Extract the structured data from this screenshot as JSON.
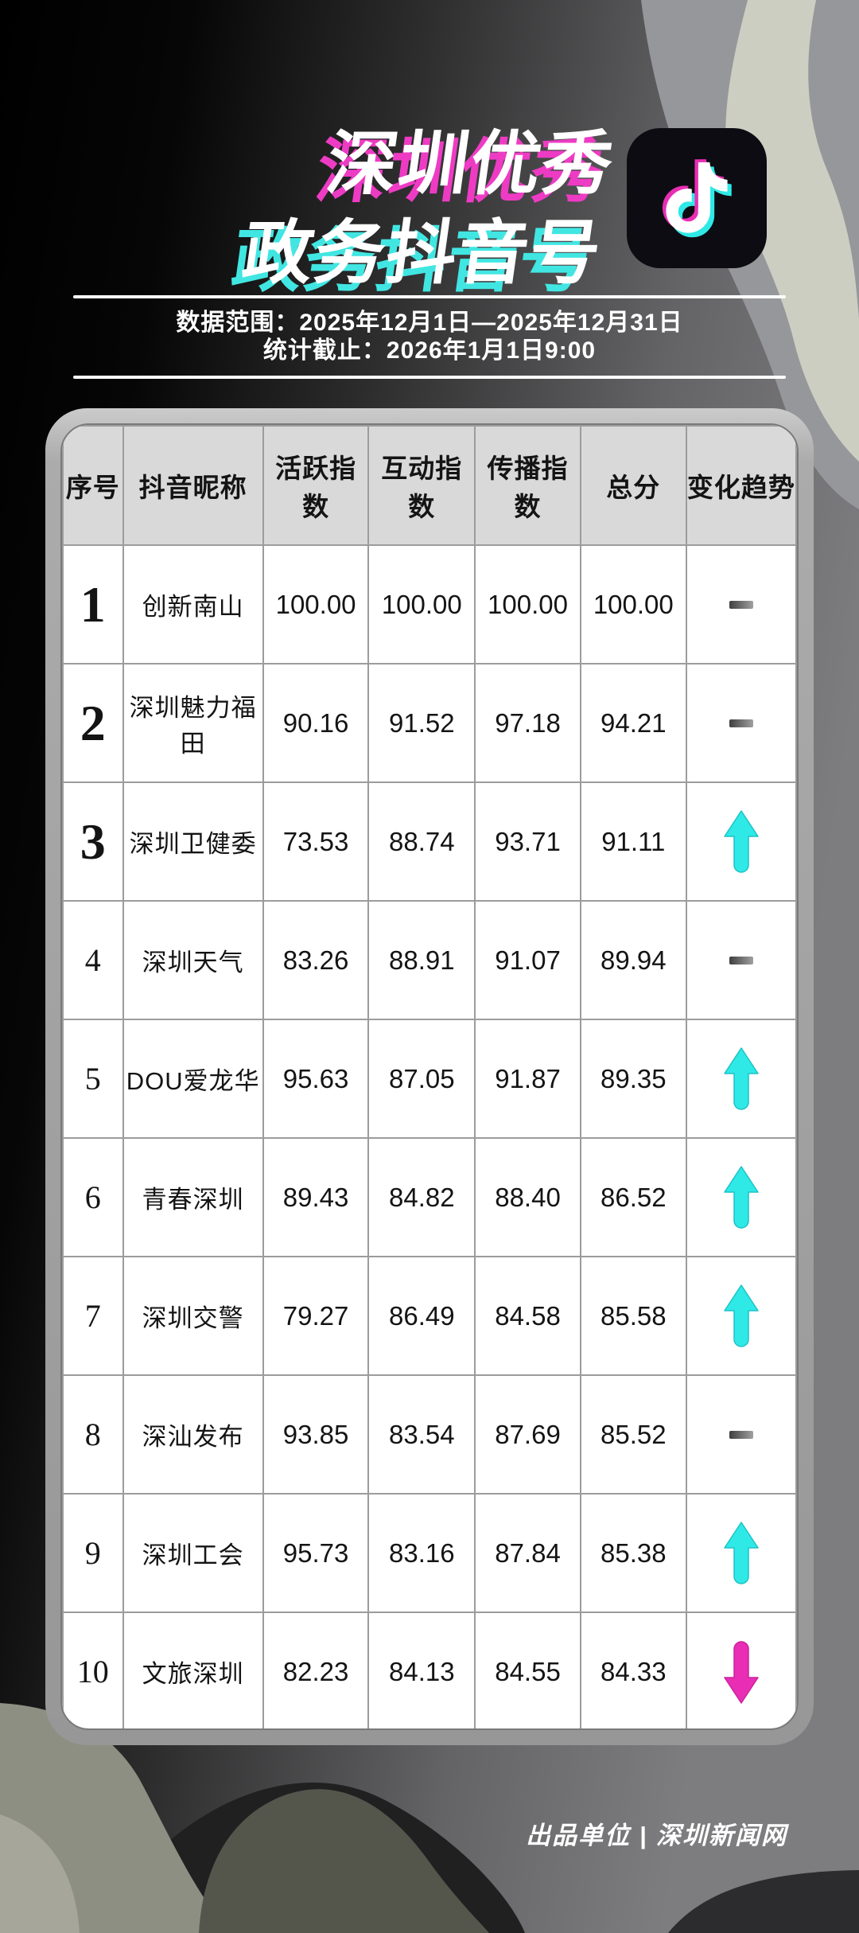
{
  "header": {
    "title_line1": "深圳优秀",
    "title_line2": "政务抖音号",
    "logo_icon": "douyin-logo"
  },
  "info": {
    "data_range": "数据范围：2025年12月1日—2025年12月31日",
    "stats_cutoff": "统计截止：2026年1月1日9:00"
  },
  "table": {
    "columns": [
      "序号",
      "抖音昵称",
      "活跃指数",
      "互动指数",
      "传播指数",
      "总分",
      "变化趋势"
    ],
    "rows": [
      {
        "rank": "1",
        "name": "创新南山",
        "activity": "100.00",
        "interaction": "100.00",
        "spread": "100.00",
        "total": "100.00",
        "trend": "flat"
      },
      {
        "rank": "2",
        "name": "深圳魅力福田",
        "activity": "90.16",
        "interaction": "91.52",
        "spread": "97.18",
        "total": "94.21",
        "trend": "flat"
      },
      {
        "rank": "3",
        "name": "深圳卫健委",
        "activity": "73.53",
        "interaction": "88.74",
        "spread": "93.71",
        "total": "91.11",
        "trend": "up"
      },
      {
        "rank": "4",
        "name": "深圳天气",
        "activity": "83.26",
        "interaction": "88.91",
        "spread": "91.07",
        "total": "89.94",
        "trend": "flat"
      },
      {
        "rank": "5",
        "name": "DOU爱龙华",
        "activity": "95.63",
        "interaction": "87.05",
        "spread": "91.87",
        "total": "89.35",
        "trend": "up"
      },
      {
        "rank": "6",
        "name": "青春深圳",
        "activity": "89.43",
        "interaction": "84.82",
        "spread": "88.40",
        "total": "86.52",
        "trend": "up"
      },
      {
        "rank": "7",
        "name": "深圳交警",
        "activity": "79.27",
        "interaction": "86.49",
        "spread": "84.58",
        "total": "85.58",
        "trend": "up"
      },
      {
        "rank": "8",
        "name": "深汕发布",
        "activity": "93.85",
        "interaction": "83.54",
        "spread": "87.69",
        "total": "85.52",
        "trend": "flat"
      },
      {
        "rank": "9",
        "name": "深圳工会",
        "activity": "95.73",
        "interaction": "83.16",
        "spread": "87.84",
        "total": "85.38",
        "trend": "up"
      },
      {
        "rank": "10",
        "name": "文旅深圳",
        "activity": "82.23",
        "interaction": "84.13",
        "spread": "84.55",
        "total": "84.33",
        "trend": "down"
      }
    ]
  },
  "footer": {
    "credit": "出品单位 | 深圳新闻网"
  },
  "colors": {
    "title_shadow_magenta": "#ee3bc4",
    "title_shadow_cyan": "#41e6e2",
    "trend_up": "#2fe9e7",
    "trend_up_edge": "#1cc3c5",
    "trend_down": "#e92db4",
    "trend_down_edge": "#c9239c",
    "trend_flat_start": "#3f3f3f",
    "trend_flat_end": "#a0a0a0"
  }
}
